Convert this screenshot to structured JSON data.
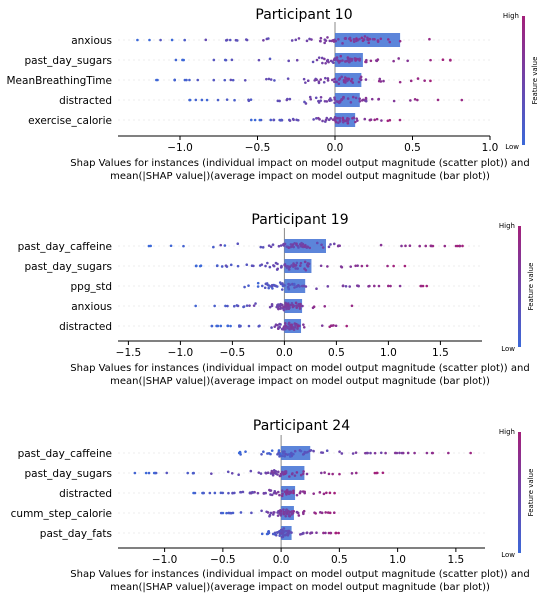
{
  "colors": {
    "low": "#3b68d8",
    "high": "#a3207a",
    "bar": "#4a78d6",
    "axis": "#000000",
    "zero_line": "#888888"
  },
  "colorbar": {
    "high_label": "High",
    "low_label": "Low",
    "title": "Feature value"
  },
  "chart_data": [
    {
      "type": "bar",
      "overlay": "beeswarm scatter of per-instance SHAP values",
      "title": "Participant 10",
      "xlabel": "Shap Values for instances (individual impact on model output magnitude (scatter plot)) and mean(|SHAP value|)(average impact on model output magnitude (bar plot))",
      "xlim": [
        -1.4,
        1.0
      ],
      "xticks": [
        -1.0,
        -0.5,
        0.0,
        0.5,
        1.0
      ],
      "xtick_labels": [
        "−1.0",
        "−0.5",
        "0.0",
        "0.5",
        "1.0"
      ],
      "categories": [
        "anxious",
        "past_day_sugars",
        "MeanBreathingTime",
        "distracted",
        "exercise_calorie"
      ],
      "values": [
        0.42,
        0.18,
        0.17,
        0.16,
        0.13
      ],
      "scatter_range": [
        [
          -1.35,
          0.85
        ],
        [
          -1.1,
          0.8
        ],
        [
          -1.2,
          0.85
        ],
        [
          -1.0,
          0.9
        ],
        [
          -0.6,
          0.42
        ]
      ]
    },
    {
      "type": "bar",
      "overlay": "beeswarm scatter of per-instance SHAP values",
      "title": "Participant 19",
      "xlabel": "Shap Values for instances (individual impact on model output magnitude (scatter plot)) and mean(|SHAP value|)(average impact on model output magnitude (bar plot))",
      "xlim": [
        -1.6,
        1.9
      ],
      "xticks": [
        -1.5,
        -1.0,
        -0.5,
        0.0,
        0.5,
        1.0,
        1.5
      ],
      "xtick_labels": [
        "−1.5",
        "−1.0",
        "−0.5",
        "0.0",
        "0.5",
        "1.0",
        "1.5"
      ],
      "categories": [
        "past_day_caffeine",
        "past_day_sugars",
        "ppg_std",
        "anxious",
        "distracted"
      ],
      "values": [
        0.4,
        0.26,
        0.2,
        0.17,
        0.16
      ],
      "scatter_range": [
        [
          -1.4,
          1.8
        ],
        [
          -0.9,
          1.2
        ],
        [
          -0.5,
          1.4
        ],
        [
          -0.9,
          0.8
        ],
        [
          -0.7,
          0.6
        ]
      ]
    },
    {
      "type": "bar",
      "overlay": "beeswarm scatter of per-instance SHAP values",
      "title": "Participant 24",
      "xlabel": "Shap Values for instances (individual impact on model output magnitude (scatter plot)) and mean(|SHAP value|)(average impact on model output magnitude (bar plot))",
      "xlim": [
        -1.4,
        1.75
      ],
      "xticks": [
        -1.0,
        -0.5,
        0.0,
        0.5,
        1.0,
        1.5
      ],
      "xtick_labels": [
        "−1.0",
        "−0.5",
        "0.0",
        "0.5",
        "1.0",
        "1.5"
      ],
      "categories": [
        "past_day_caffeine",
        "past_day_sugars",
        "distracted",
        "cumm_step_calorie",
        "past_day_fats"
      ],
      "values": [
        0.25,
        0.2,
        0.12,
        0.11,
        0.09
      ],
      "scatter_range": [
        [
          -0.4,
          1.65
        ],
        [
          -1.3,
          0.9
        ],
        [
          -0.8,
          0.5
        ],
        [
          -0.6,
          0.5
        ],
        [
          -0.2,
          0.5
        ]
      ]
    }
  ]
}
